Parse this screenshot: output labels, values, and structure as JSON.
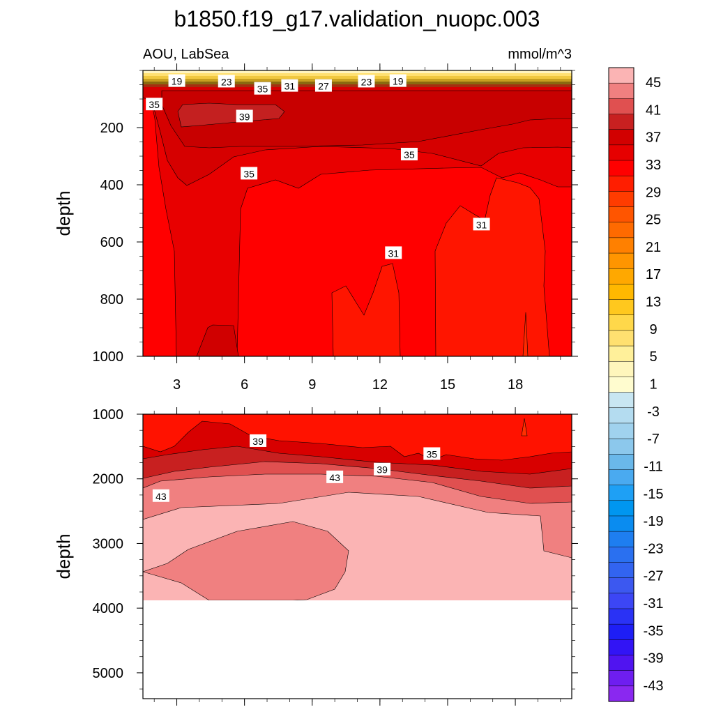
{
  "chart_data": {
    "type": "contour",
    "title": "b1850.f19_g17.validation_nuopc.003",
    "subtitle_left": "AOU, LabSea",
    "subtitle_right": "mmol/m^3",
    "xlabel": "",
    "ylabel": "depth",
    "x_ticks": [
      "3",
      "6",
      "9",
      "12",
      "15",
      "18"
    ],
    "x_range": [
      1.5,
      20.5
    ],
    "panels": [
      {
        "name": "upper",
        "ylim": [
          0,
          1000
        ],
        "y_ticks": [
          "200",
          "400",
          "600",
          "800",
          "1000"
        ],
        "contour_labels": [
          {
            "text": "19",
            "x": 3.0,
            "y": 38
          },
          {
            "text": "23",
            "x": 5.2,
            "y": 40
          },
          {
            "text": "35",
            "x": 6.8,
            "y": 65
          },
          {
            "text": "31",
            "x": 8.0,
            "y": 55
          },
          {
            "text": "27",
            "x": 9.5,
            "y": 55
          },
          {
            "text": "23",
            "x": 11.4,
            "y": 40
          },
          {
            "text": "19",
            "x": 12.8,
            "y": 38
          },
          {
            "text": "35",
            "x": 2.0,
            "y": 120
          },
          {
            "text": "39",
            "x": 6.0,
            "y": 162
          },
          {
            "text": "35",
            "x": 13.3,
            "y": 295
          },
          {
            "text": "35",
            "x": 6.2,
            "y": 362
          },
          {
            "text": "31",
            "x": 16.5,
            "y": 540
          },
          {
            "text": "31",
            "x": 12.6,
            "y": 640
          }
        ]
      },
      {
        "name": "lower",
        "ylim": [
          1000,
          5400
        ],
        "y_ticks": [
          "1000",
          "2000",
          "3000",
          "4000",
          "5000"
        ],
        "contour_labels": [
          {
            "text": "39",
            "x": 6.6,
            "y": 1420
          },
          {
            "text": "35",
            "x": 14.3,
            "y": 1620
          },
          {
            "text": "39",
            "x": 12.1,
            "y": 1860
          },
          {
            "text": "43",
            "x": 10.0,
            "y": 1980
          },
          {
            "text": "43",
            "x": 2.3,
            "y": 2270
          }
        ]
      }
    ],
    "colorbar": {
      "labels": [
        "45",
        "41",
        "37",
        "33",
        "29",
        "25",
        "21",
        "17",
        "13",
        "9",
        "5",
        "1",
        "-3",
        "-7",
        "-11",
        "-15",
        "-19",
        "-23",
        "-27",
        "-31",
        "-35",
        "-39",
        "-43"
      ],
      "colors": [
        "#fbb4b4",
        "#f08080",
        "#e05050",
        "#c82020",
        "#d20000",
        "#e60000",
        "#ff0000",
        "#ff1e00",
        "#ff3c00",
        "#ff5500",
        "#ff6a00",
        "#ff8000",
        "#ff9500",
        "#ffa800",
        "#ffb800",
        "#ffc81e",
        "#ffd84a",
        "#ffe070",
        "#fff09a",
        "#fff6bc",
        "#fffccf",
        "#c8e6f2",
        "#b4dcf0",
        "#a0d2ee",
        "#8cc8ec",
        "#6ab8ea",
        "#4aaaf0",
        "#1ea0f5",
        "#0096f0",
        "#0a8cf0",
        "#1e7ef0",
        "#2a70f0",
        "#3264f0",
        "#3c58f0",
        "#3c46f5",
        "#2a32f5",
        "#1e1ef5",
        "#3214f5",
        "#5014f0",
        "#6e1ef0",
        "#8a28f0"
      ]
    }
  }
}
